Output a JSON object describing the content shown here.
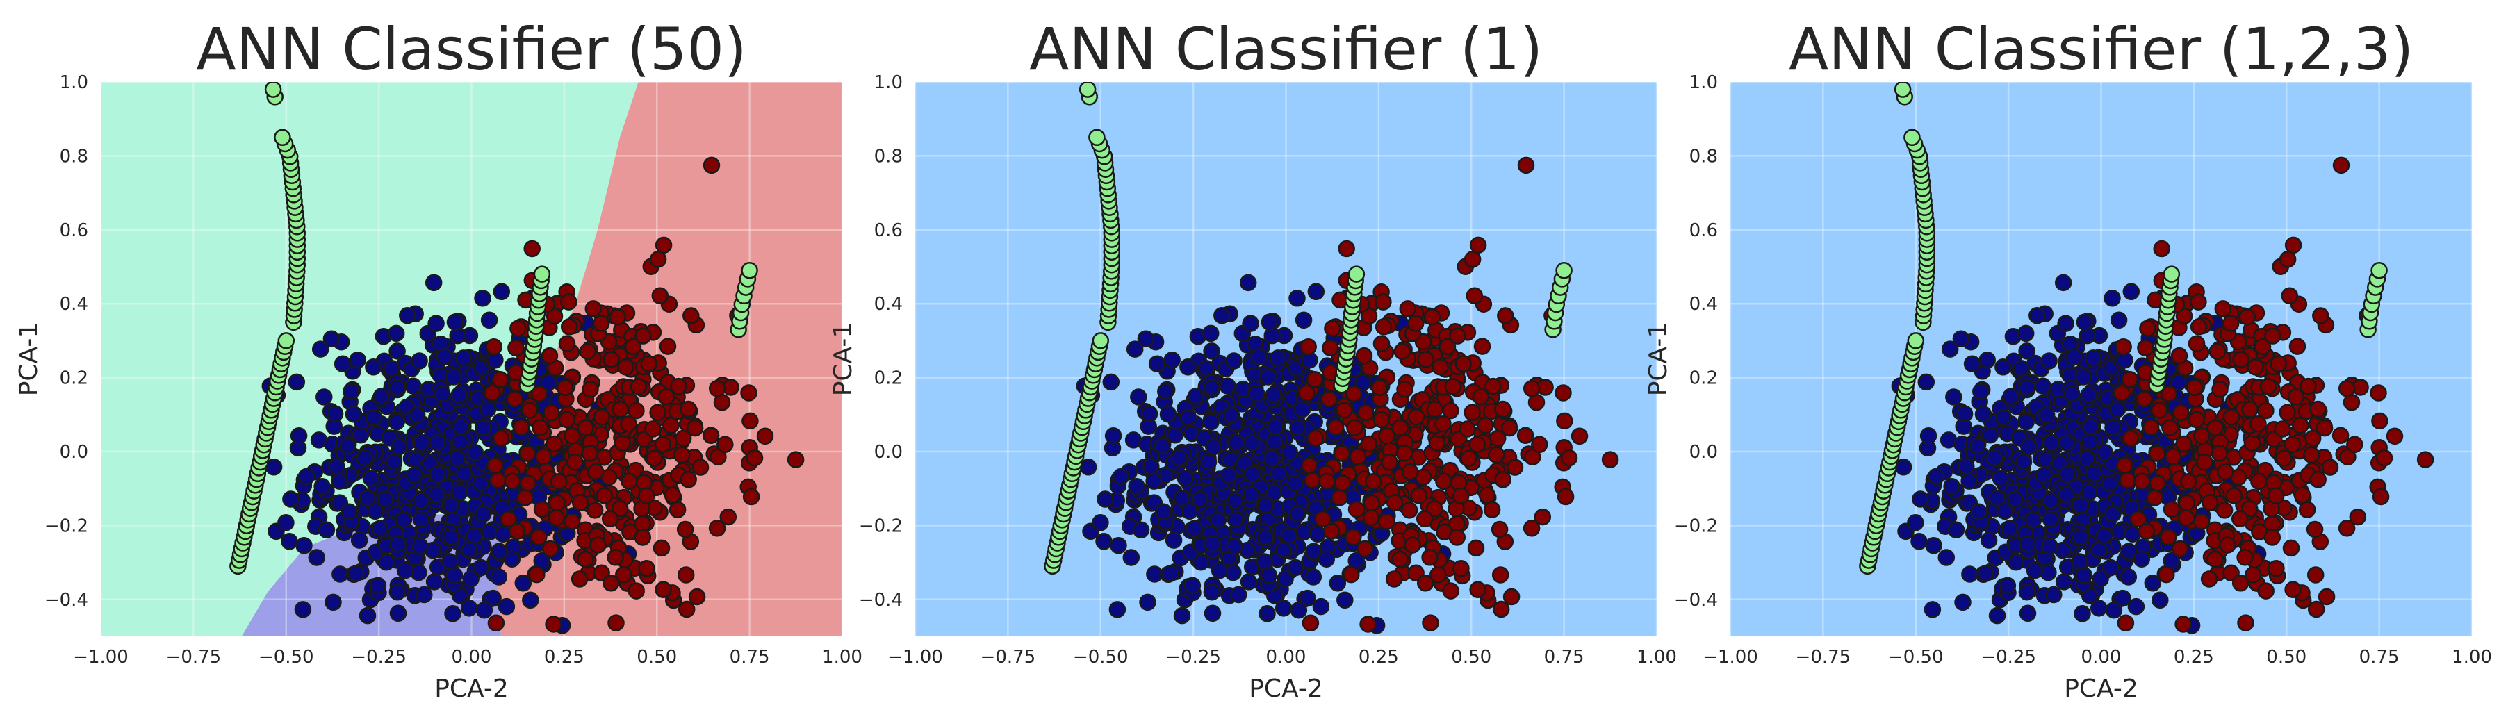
{
  "chart_data": [
    {
      "type": "scatter",
      "title": "ANN Classifier (50)",
      "xlabel": "PCA-2",
      "ylabel": "PCA-1",
      "xlim": [
        -1.0,
        1.0
      ],
      "ylim": [
        -0.5,
        1.0
      ],
      "xticks": [
        "−1.00",
        "−0.75",
        "−0.50",
        "−0.25",
        "0.00",
        "0.25",
        "0.50",
        "0.75",
        "1.00"
      ],
      "yticks": [
        "−0.4",
        "−0.2",
        "0.0",
        "0.2",
        "0.4",
        "0.6",
        "0.8",
        "1.0"
      ],
      "grid": true,
      "background": "decision-regions",
      "regions": [
        {
          "class": "green",
          "color": "#b2f5dd",
          "polygon": [
            [
              -1.0,
              -0.5
            ],
            [
              -0.62,
              -0.5
            ],
            [
              -0.55,
              -0.38
            ],
            [
              -0.45,
              -0.26
            ],
            [
              -0.3,
              -0.2
            ],
            [
              -0.15,
              -0.17
            ],
            [
              0.0,
              -0.17
            ],
            [
              0.1,
              -0.12
            ],
            [
              0.15,
              0.0
            ],
            [
              0.2,
              0.2
            ],
            [
              0.28,
              0.4
            ],
            [
              0.34,
              0.6
            ],
            [
              0.4,
              0.85
            ],
            [
              0.45,
              1.0
            ],
            [
              -1.0,
              1.0
            ]
          ]
        },
        {
          "class": "blue",
          "color": "#9d9fe8",
          "polygon": [
            [
              -0.62,
              -0.5
            ],
            [
              0.08,
              -0.5
            ],
            [
              0.07,
              -0.35
            ],
            [
              0.1,
              -0.12
            ],
            [
              0.0,
              -0.17
            ],
            [
              -0.15,
              -0.17
            ],
            [
              -0.3,
              -0.2
            ],
            [
              -0.45,
              -0.26
            ],
            [
              -0.55,
              -0.38
            ]
          ]
        },
        {
          "class": "red",
          "color": "#e89898",
          "polygon": [
            [
              0.08,
              -0.5
            ],
            [
              1.0,
              -0.5
            ],
            [
              1.0,
              1.0
            ],
            [
              0.45,
              1.0
            ],
            [
              0.4,
              0.85
            ],
            [
              0.34,
              0.6
            ],
            [
              0.28,
              0.4
            ],
            [
              0.2,
              0.2
            ],
            [
              0.15,
              0.0
            ],
            [
              0.1,
              -0.12
            ],
            [
              0.07,
              -0.35
            ]
          ]
        }
      ]
    },
    {
      "type": "scatter",
      "title": "ANN Classifier (1)",
      "xlabel": "PCA-2",
      "ylabel": "PCA-1",
      "xlim": [
        -1.0,
        1.0
      ],
      "ylim": [
        -0.5,
        1.0
      ],
      "xticks": [
        "−1.00",
        "−0.75",
        "−0.50",
        "−0.25",
        "0.00",
        "0.25",
        "0.50",
        "0.75",
        "1.00"
      ],
      "yticks": [
        "−0.4",
        "−0.2",
        "0.0",
        "0.2",
        "0.4",
        "0.6",
        "0.8",
        "1.0"
      ],
      "grid": true,
      "background": "#99ccff"
    },
    {
      "type": "scatter",
      "title": "ANN Classifier (1,2,3)",
      "xlabel": "PCA-2",
      "ylabel": "PCA-1",
      "xlim": [
        -1.0,
        1.0
      ],
      "ylim": [
        -0.5,
        1.0
      ],
      "xticks": [
        "−1.00",
        "−0.75",
        "−0.50",
        "−0.25",
        "0.00",
        "0.25",
        "0.50",
        "0.75",
        "1.00"
      ],
      "yticks": [
        "−0.4",
        "−0.2",
        "0.0",
        "0.2",
        "0.4",
        "0.6",
        "0.8",
        "1.0"
      ],
      "grid": true,
      "background": "#99ccff"
    }
  ],
  "points": {
    "colors": {
      "green": "#90ee90",
      "blue": "#0a0a80",
      "red": "#7f0000"
    },
    "green_arcs": [
      {
        "y": [
          -0.31,
          0.3
        ],
        "x_at_bottom": -0.63,
        "x_at_top": -0.5,
        "count": 40
      },
      {
        "y": [
          0.35,
          0.85
        ],
        "curve": [
          [
            0.35,
            -0.48
          ],
          [
            0.5,
            -0.47
          ],
          [
            0.6,
            -0.47
          ],
          [
            0.7,
            -0.48
          ],
          [
            0.8,
            -0.49
          ],
          [
            0.85,
            -0.51
          ]
        ],
        "count": 30
      },
      {
        "y": [
          0.96,
          0.98
        ],
        "curve": [
          [
            0.96,
            -0.53
          ],
          [
            0.98,
            -0.535
          ]
        ],
        "count": 2
      },
      {
        "y": [
          0.18,
          0.48
        ],
        "curve": [
          [
            0.18,
            0.15
          ],
          [
            0.3,
            0.17
          ],
          [
            0.4,
            0.18
          ],
          [
            0.48,
            0.19
          ]
        ],
        "count": 18
      },
      {
        "y": [
          0.33,
          0.49
        ],
        "curve": [
          [
            0.33,
            0.72
          ],
          [
            0.4,
            0.73
          ],
          [
            0.49,
            0.75
          ]
        ],
        "count": 8
      }
    ],
    "blue_cluster": {
      "cx": -0.08,
      "cy": -0.05,
      "sx": 0.18,
      "sy": 0.2,
      "count": 620,
      "x_range": [
        -0.55,
        0.9
      ],
      "y_range": [
        -0.5,
        0.85
      ]
    },
    "red_cluster": {
      "cx": 0.35,
      "cy": 0.02,
      "sx": 0.18,
      "sy": 0.22,
      "count": 380,
      "x_range": [
        0.05,
        0.9
      ],
      "y_range": [
        -0.5,
        0.82
      ]
    }
  }
}
